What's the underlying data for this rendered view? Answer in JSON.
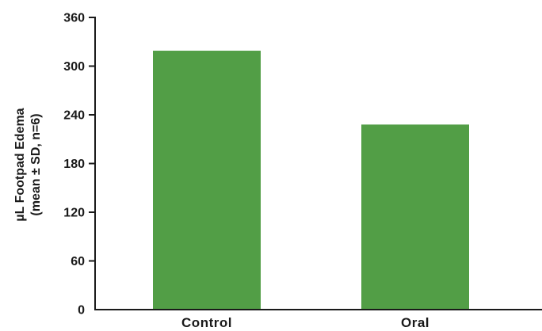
{
  "chart_data": {
    "type": "bar",
    "title": "",
    "xlabel": "",
    "ylabel": [
      "µL Footpad Edema",
      "(mean ± SD, n=6)"
    ],
    "categories": [
      "Control",
      "Oral"
    ],
    "values": [
      319,
      228
    ],
    "ylim": [
      0,
      360
    ],
    "yticks": [
      0,
      60,
      120,
      180,
      240,
      300,
      360
    ],
    "grid": false,
    "legend": "none",
    "colors": {
      "bar": "#529e46",
      "axis": "#1a1a1a"
    }
  }
}
